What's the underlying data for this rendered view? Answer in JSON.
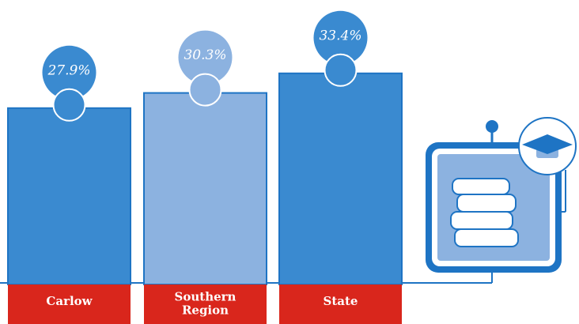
{
  "chart_data": {
    "type": "bar",
    "categories": [
      "Carlow",
      "Southern Region",
      "State"
    ],
    "values": [
      27.9,
      30.3,
      33.4
    ],
    "value_labels": [
      "27.9%",
      "30.3%",
      "33.4%"
    ],
    "colors": [
      "#3a8ad0",
      "#8cb2e0",
      "#3a8ad0"
    ]
  }
}
